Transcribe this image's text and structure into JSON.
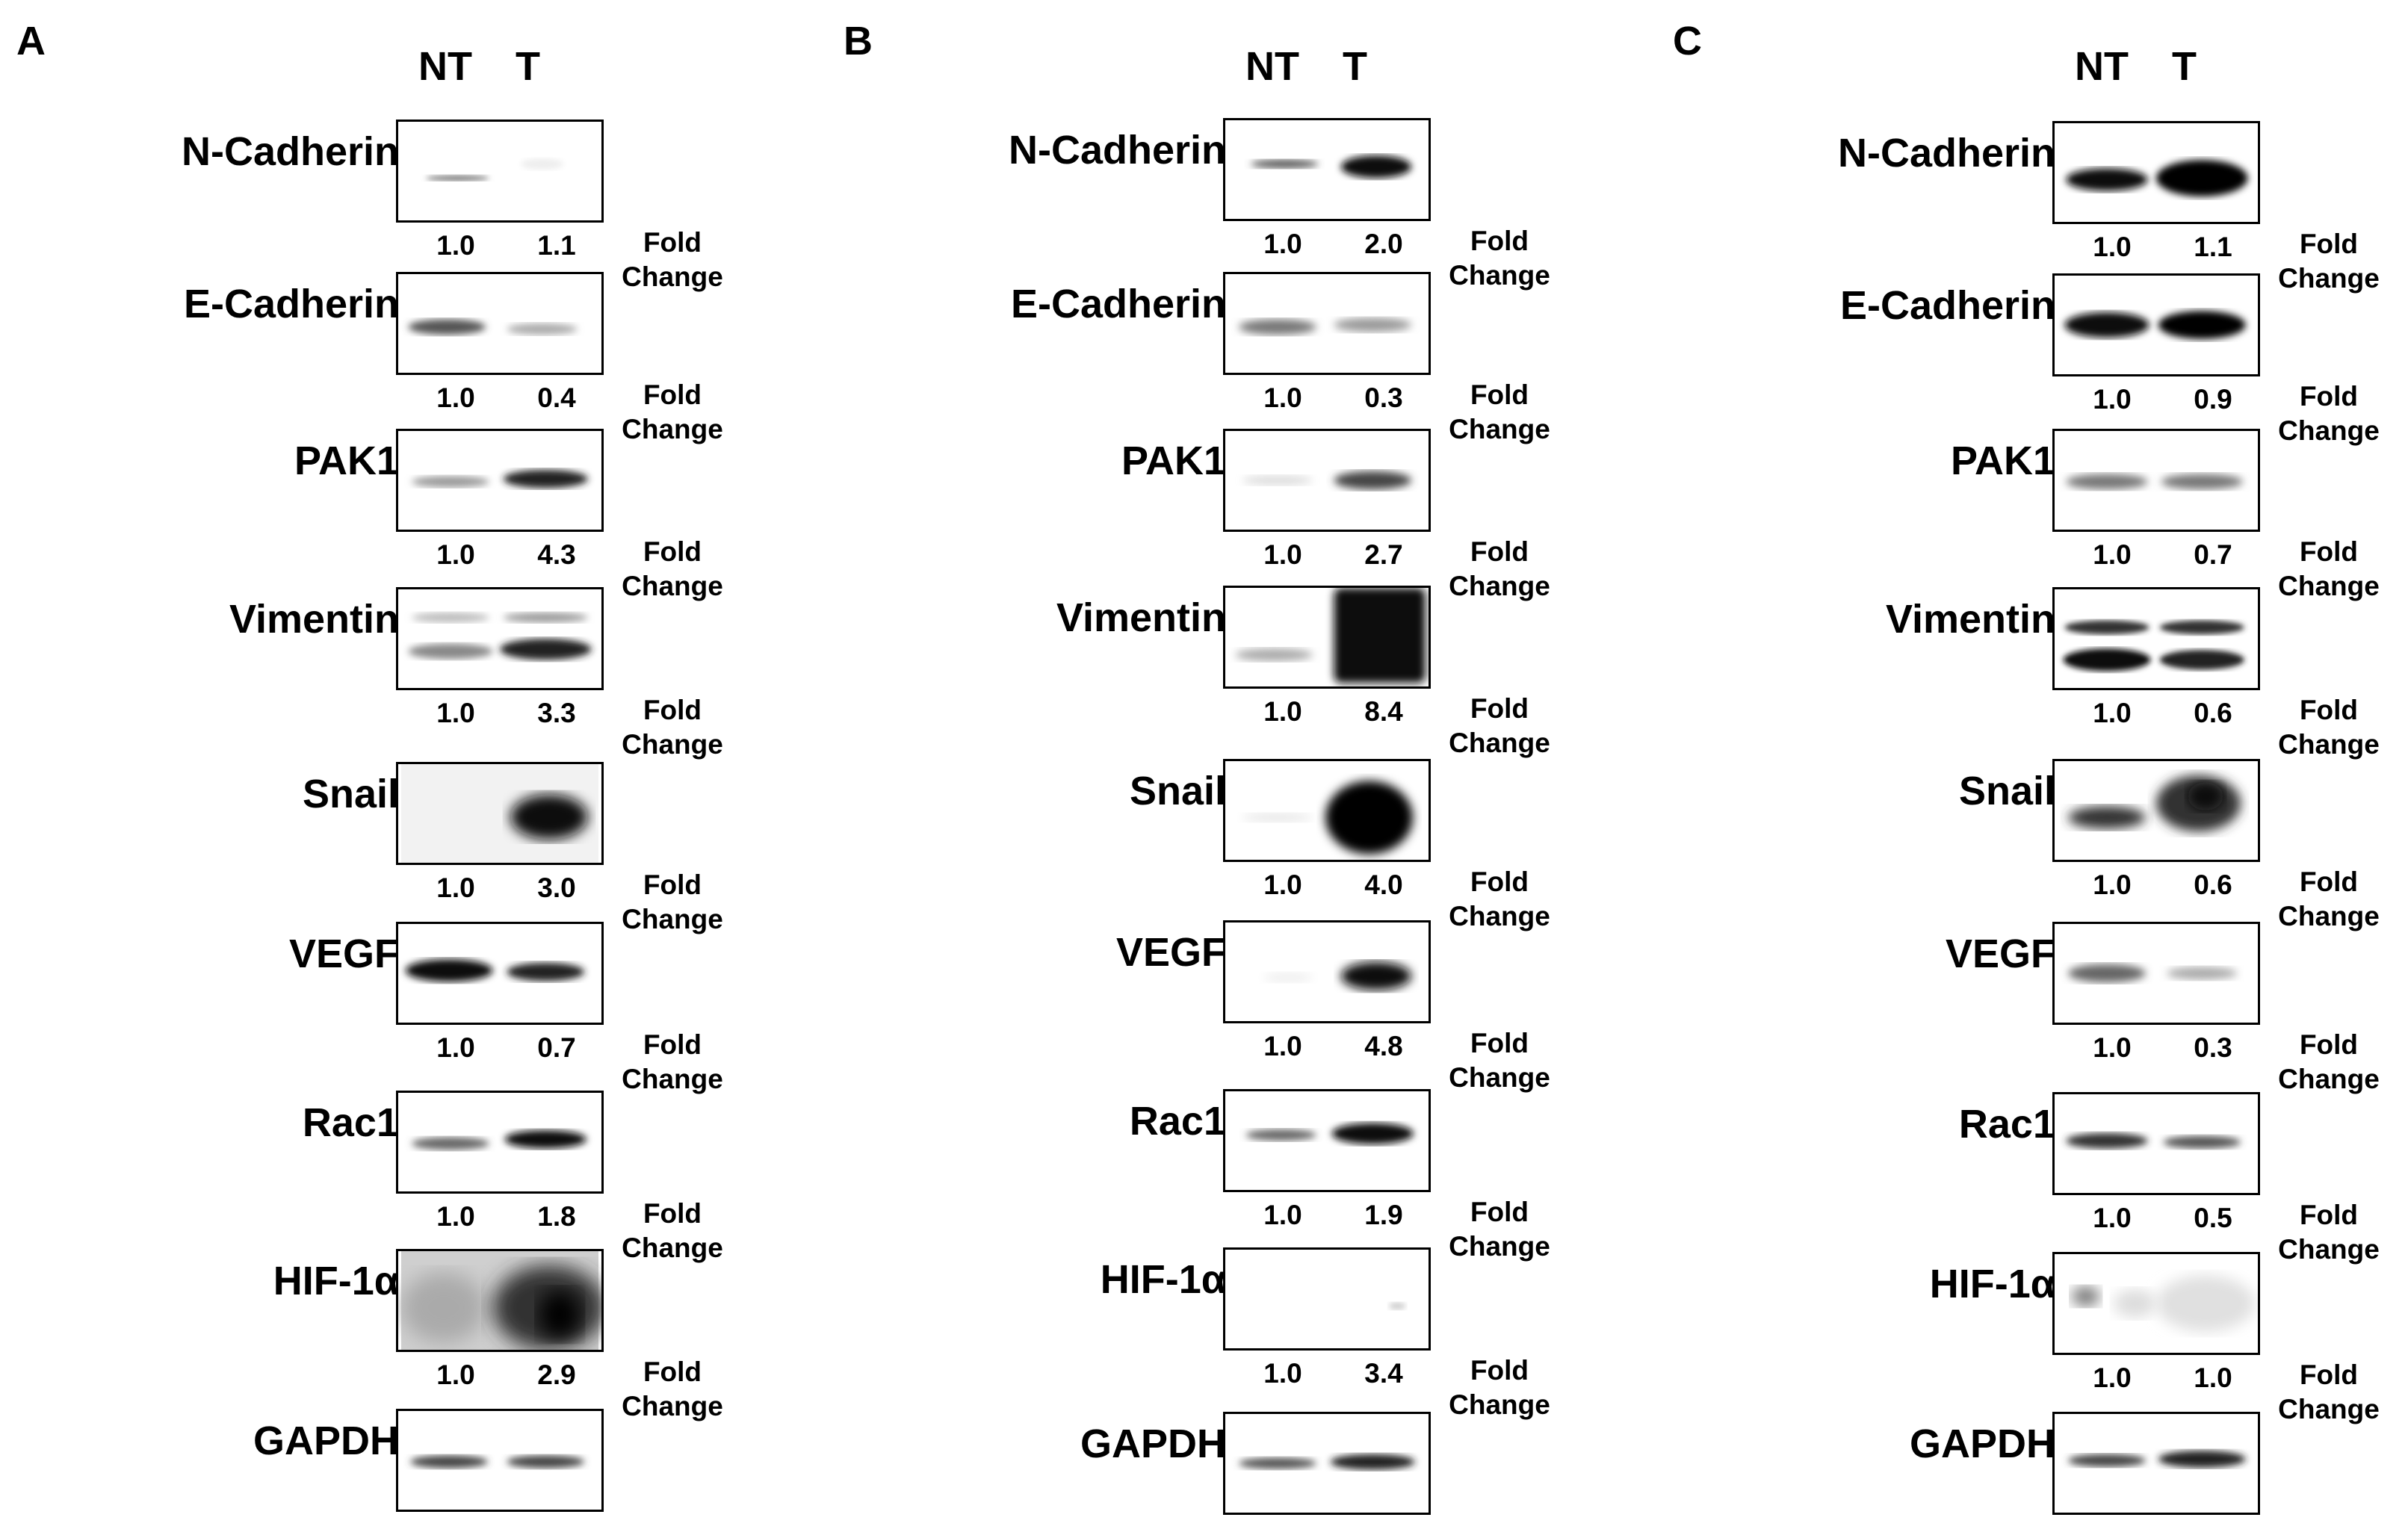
{
  "panels": [
    {
      "letter": "A",
      "lanes": [
        "NT",
        "T"
      ],
      "rows": [
        {
          "protein": "N-Cadherin",
          "fc": [
            "1.0",
            "1.1"
          ]
        },
        {
          "protein": "E-Cadherin",
          "fc": [
            "1.0",
            "0.4"
          ]
        },
        {
          "protein": "PAK1",
          "fc": [
            "1.0",
            "4.3"
          ]
        },
        {
          "protein": "Vimentin",
          "fc": [
            "1.0",
            "3.3"
          ]
        },
        {
          "protein": "Snail",
          "fc": [
            "1.0",
            "3.0"
          ]
        },
        {
          "protein": "VEGF",
          "fc": [
            "1.0",
            "0.7"
          ]
        },
        {
          "protein": "Rac1",
          "fc": [
            "1.0",
            "1.8"
          ]
        },
        {
          "protein": "HIF-1α",
          "fc": [
            "1.0",
            "2.9"
          ]
        },
        {
          "protein": "GAPDH"
        }
      ]
    },
    {
      "letter": "B",
      "lanes": [
        "NT",
        "T"
      ],
      "rows": [
        {
          "protein": "N-Cadherin",
          "fc": [
            "1.0",
            "2.0"
          ]
        },
        {
          "protein": "E-Cadherin",
          "fc": [
            "1.0",
            "0.3"
          ]
        },
        {
          "protein": "PAK1",
          "fc": [
            "1.0",
            "2.7"
          ]
        },
        {
          "protein": "Vimentin",
          "fc": [
            "1.0",
            "8.4"
          ]
        },
        {
          "protein": "Snail",
          "fc": [
            "1.0",
            "4.0"
          ]
        },
        {
          "protein": "VEGF",
          "fc": [
            "1.0",
            "4.8"
          ]
        },
        {
          "protein": "Rac1",
          "fc": [
            "1.0",
            "1.9"
          ]
        },
        {
          "protein": "HIF-1α",
          "fc": [
            "1.0",
            "3.4"
          ]
        },
        {
          "protein": "GAPDH"
        }
      ]
    },
    {
      "letter": "C",
      "lanes": [
        "NT",
        "T"
      ],
      "rows": [
        {
          "protein": "N-Cadherin",
          "fc": [
            "1.0",
            "1.1"
          ]
        },
        {
          "protein": "E-Cadherin",
          "fc": [
            "1.0",
            "0.9"
          ]
        },
        {
          "protein": "PAK1",
          "fc": [
            "1.0",
            "0.7"
          ]
        },
        {
          "protein": "Vimentin",
          "fc": [
            "1.0",
            "0.6"
          ]
        },
        {
          "protein": "Snail",
          "fc": [
            "1.0",
            "0.6"
          ]
        },
        {
          "protein": "VEGF",
          "fc": [
            "1.0",
            "0.3"
          ]
        },
        {
          "protein": "Rac1",
          "fc": [
            "1.0",
            "0.5"
          ]
        },
        {
          "protein": "HIF-1α",
          "fc": [
            "1.0",
            "1.0"
          ]
        },
        {
          "protein": "GAPDH"
        }
      ]
    }
  ],
  "fold_change_label": "Fold Change"
}
